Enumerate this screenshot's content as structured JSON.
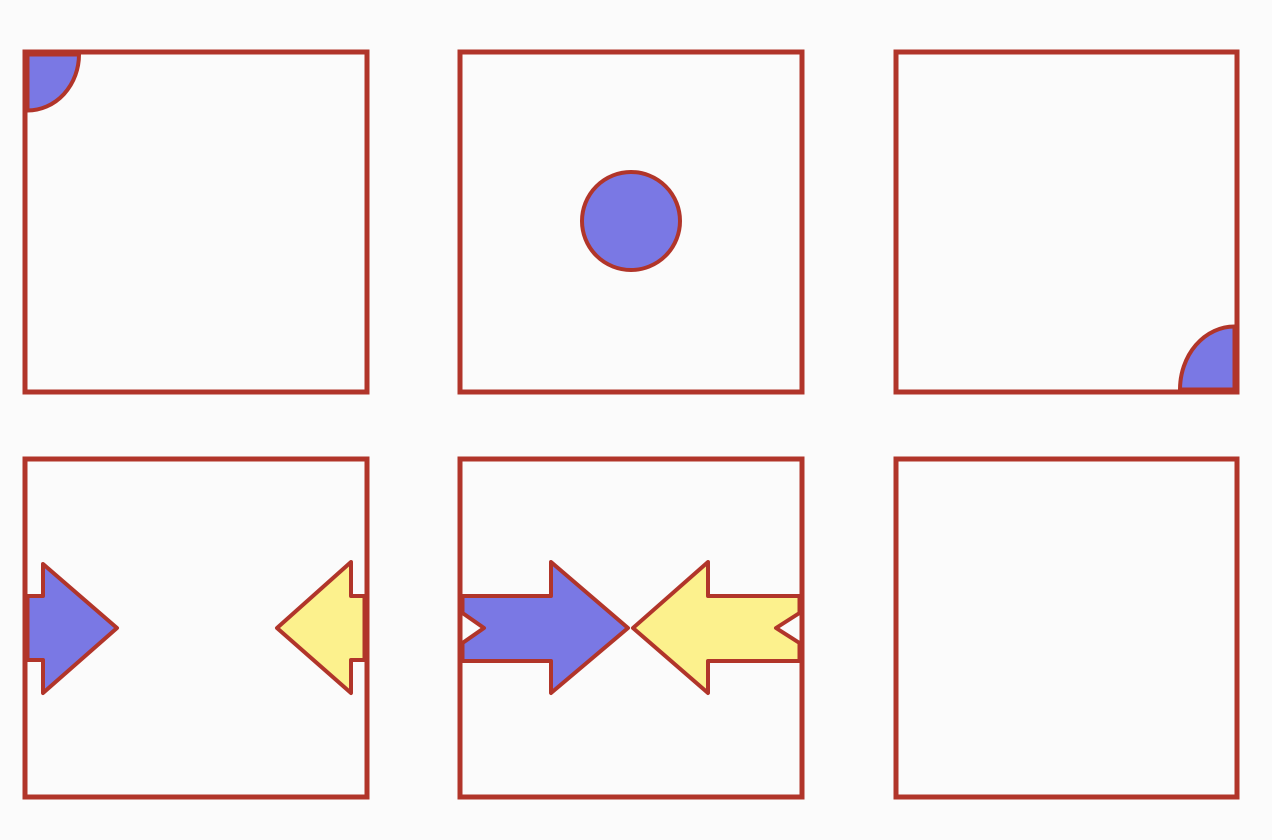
{
  "palette": {
    "frame": "#b1352a",
    "blue": "#7a78e4",
    "yellow": "#fcf18d",
    "outline": "#b1352a"
  },
  "panels": [
    {
      "row": 1,
      "col": 1,
      "contents": [
        "blue-quarter-circle-top-left"
      ]
    },
    {
      "row": 1,
      "col": 2,
      "contents": [
        "blue-circle-center"
      ]
    },
    {
      "row": 1,
      "col": 3,
      "contents": [
        "blue-quarter-circle-bottom-right"
      ]
    },
    {
      "row": 2,
      "col": 1,
      "contents": [
        "blue-arrow-right-small",
        "yellow-arrow-left-small"
      ]
    },
    {
      "row": 2,
      "col": 2,
      "contents": [
        "blue-arrow-right-long",
        "yellow-arrow-left-long"
      ]
    },
    {
      "row": 2,
      "col": 3,
      "contents": []
    }
  ]
}
